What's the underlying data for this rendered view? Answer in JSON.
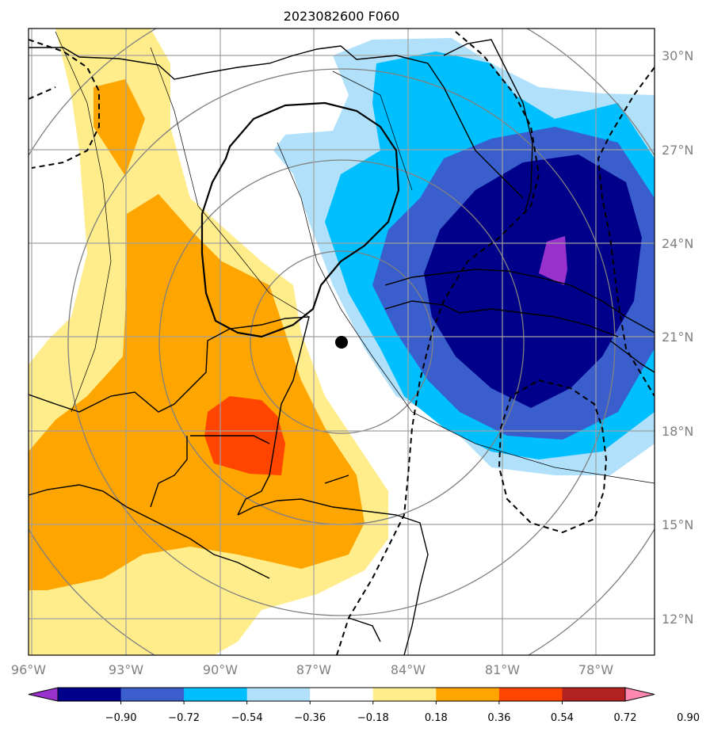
{
  "title": "2023082600 F060",
  "lat_labels": [
    "30°N",
    "27°N",
    "24°N",
    "21°N",
    "18°N",
    "15°N",
    "12°N"
  ],
  "lon_labels": [
    "96°W",
    "93°W",
    "90°W",
    "87°W",
    "84°W",
    "81°W",
    "78°W"
  ],
  "colorbar": {
    "ticks": [
      "−0.90",
      "−0.72",
      "−0.54",
      "−0.36",
      "−0.18",
      "0.18",
      "0.36",
      "0.54",
      "0.72",
      "0.90"
    ],
    "colors": [
      "#9932cc",
      "#00008b",
      "#3a5fcd",
      "#00bfff",
      "#b0e0fa",
      "#ffffff",
      "#ffec8b",
      "#ffa500",
      "#ff4500",
      "#b22222",
      "#ff88b0"
    ]
  },
  "storm_marker": "black dot near 86°W, 20.8°N"
}
